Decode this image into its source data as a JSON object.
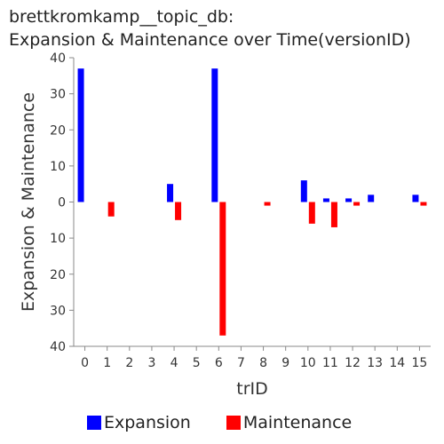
{
  "title_line1": "brettkromkamp__topic_db:",
  "title_line2": "Expansion & Maintenance over Time(versionID)",
  "chart_data": {
    "type": "bar",
    "title": "brettkromkamp__topic_db: Expansion & Maintenance over Time(versionID)",
    "xlabel": "trID",
    "ylabel": "Expansion & Maintenance",
    "categories": [
      "0",
      "1",
      "2",
      "3",
      "4",
      "5",
      "6",
      "7",
      "8",
      "9",
      "10",
      "11",
      "12",
      "13",
      "14",
      "15"
    ],
    "ylim": [
      -40,
      40
    ],
    "yticks": [
      40,
      30,
      20,
      10,
      0,
      -10,
      -20,
      -30,
      -40
    ],
    "ytick_labels": [
      "40",
      "30",
      "20",
      "10",
      "0",
      "10",
      "20",
      "30",
      "40"
    ],
    "series": [
      {
        "name": "Expansion",
        "color": "#0000ff",
        "values": [
          37,
          0,
          0,
          0,
          5,
          0,
          37,
          0,
          0,
          0,
          6,
          1,
          1,
          2,
          0,
          2
        ]
      },
      {
        "name": "Maintenance",
        "color": "#ff0000",
        "values": [
          0,
          -4,
          0,
          0,
          -5,
          0,
          -37,
          0,
          -1,
          0,
          -6,
          -7,
          -1,
          0,
          0,
          -1
        ]
      }
    ],
    "legend_position": "bottom"
  }
}
